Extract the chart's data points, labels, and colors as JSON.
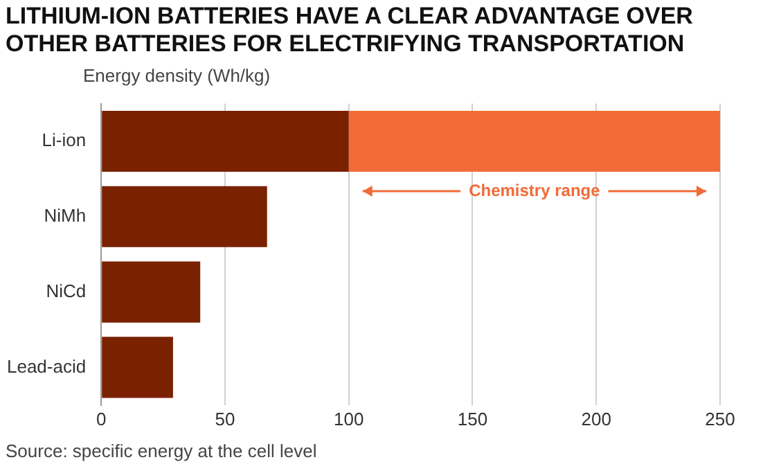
{
  "chart_data": {
    "type": "bar",
    "orientation": "horizontal",
    "stacked": true,
    "title": "LITHIUM-ION BATTERIES HAVE A CLEAR ADVANTAGE OVER OTHER BATTERIES FOR ELECTRIFYING TRANSPORTATION",
    "xlabel": "Energy density (Wh/kg)",
    "categories": [
      "Li-ion",
      "NiMh",
      "NiCd",
      "Lead-acid"
    ],
    "series": [
      {
        "color": "#7a2100",
        "values": [
          100,
          67,
          40,
          29
        ]
      },
      {
        "color": "#f26b38",
        "values": [
          150,
          null,
          null,
          null
        ]
      }
    ],
    "xlim": [
      0,
      250
    ],
    "xticks": [
      0,
      50,
      100,
      150,
      200,
      250
    ],
    "grid": "x",
    "legend": false,
    "annotations": [
      {
        "text": "Chemistry range",
        "x": 175,
        "y": "Li-ion"
      },
      "Source: specific energy at the cell level"
    ]
  }
}
